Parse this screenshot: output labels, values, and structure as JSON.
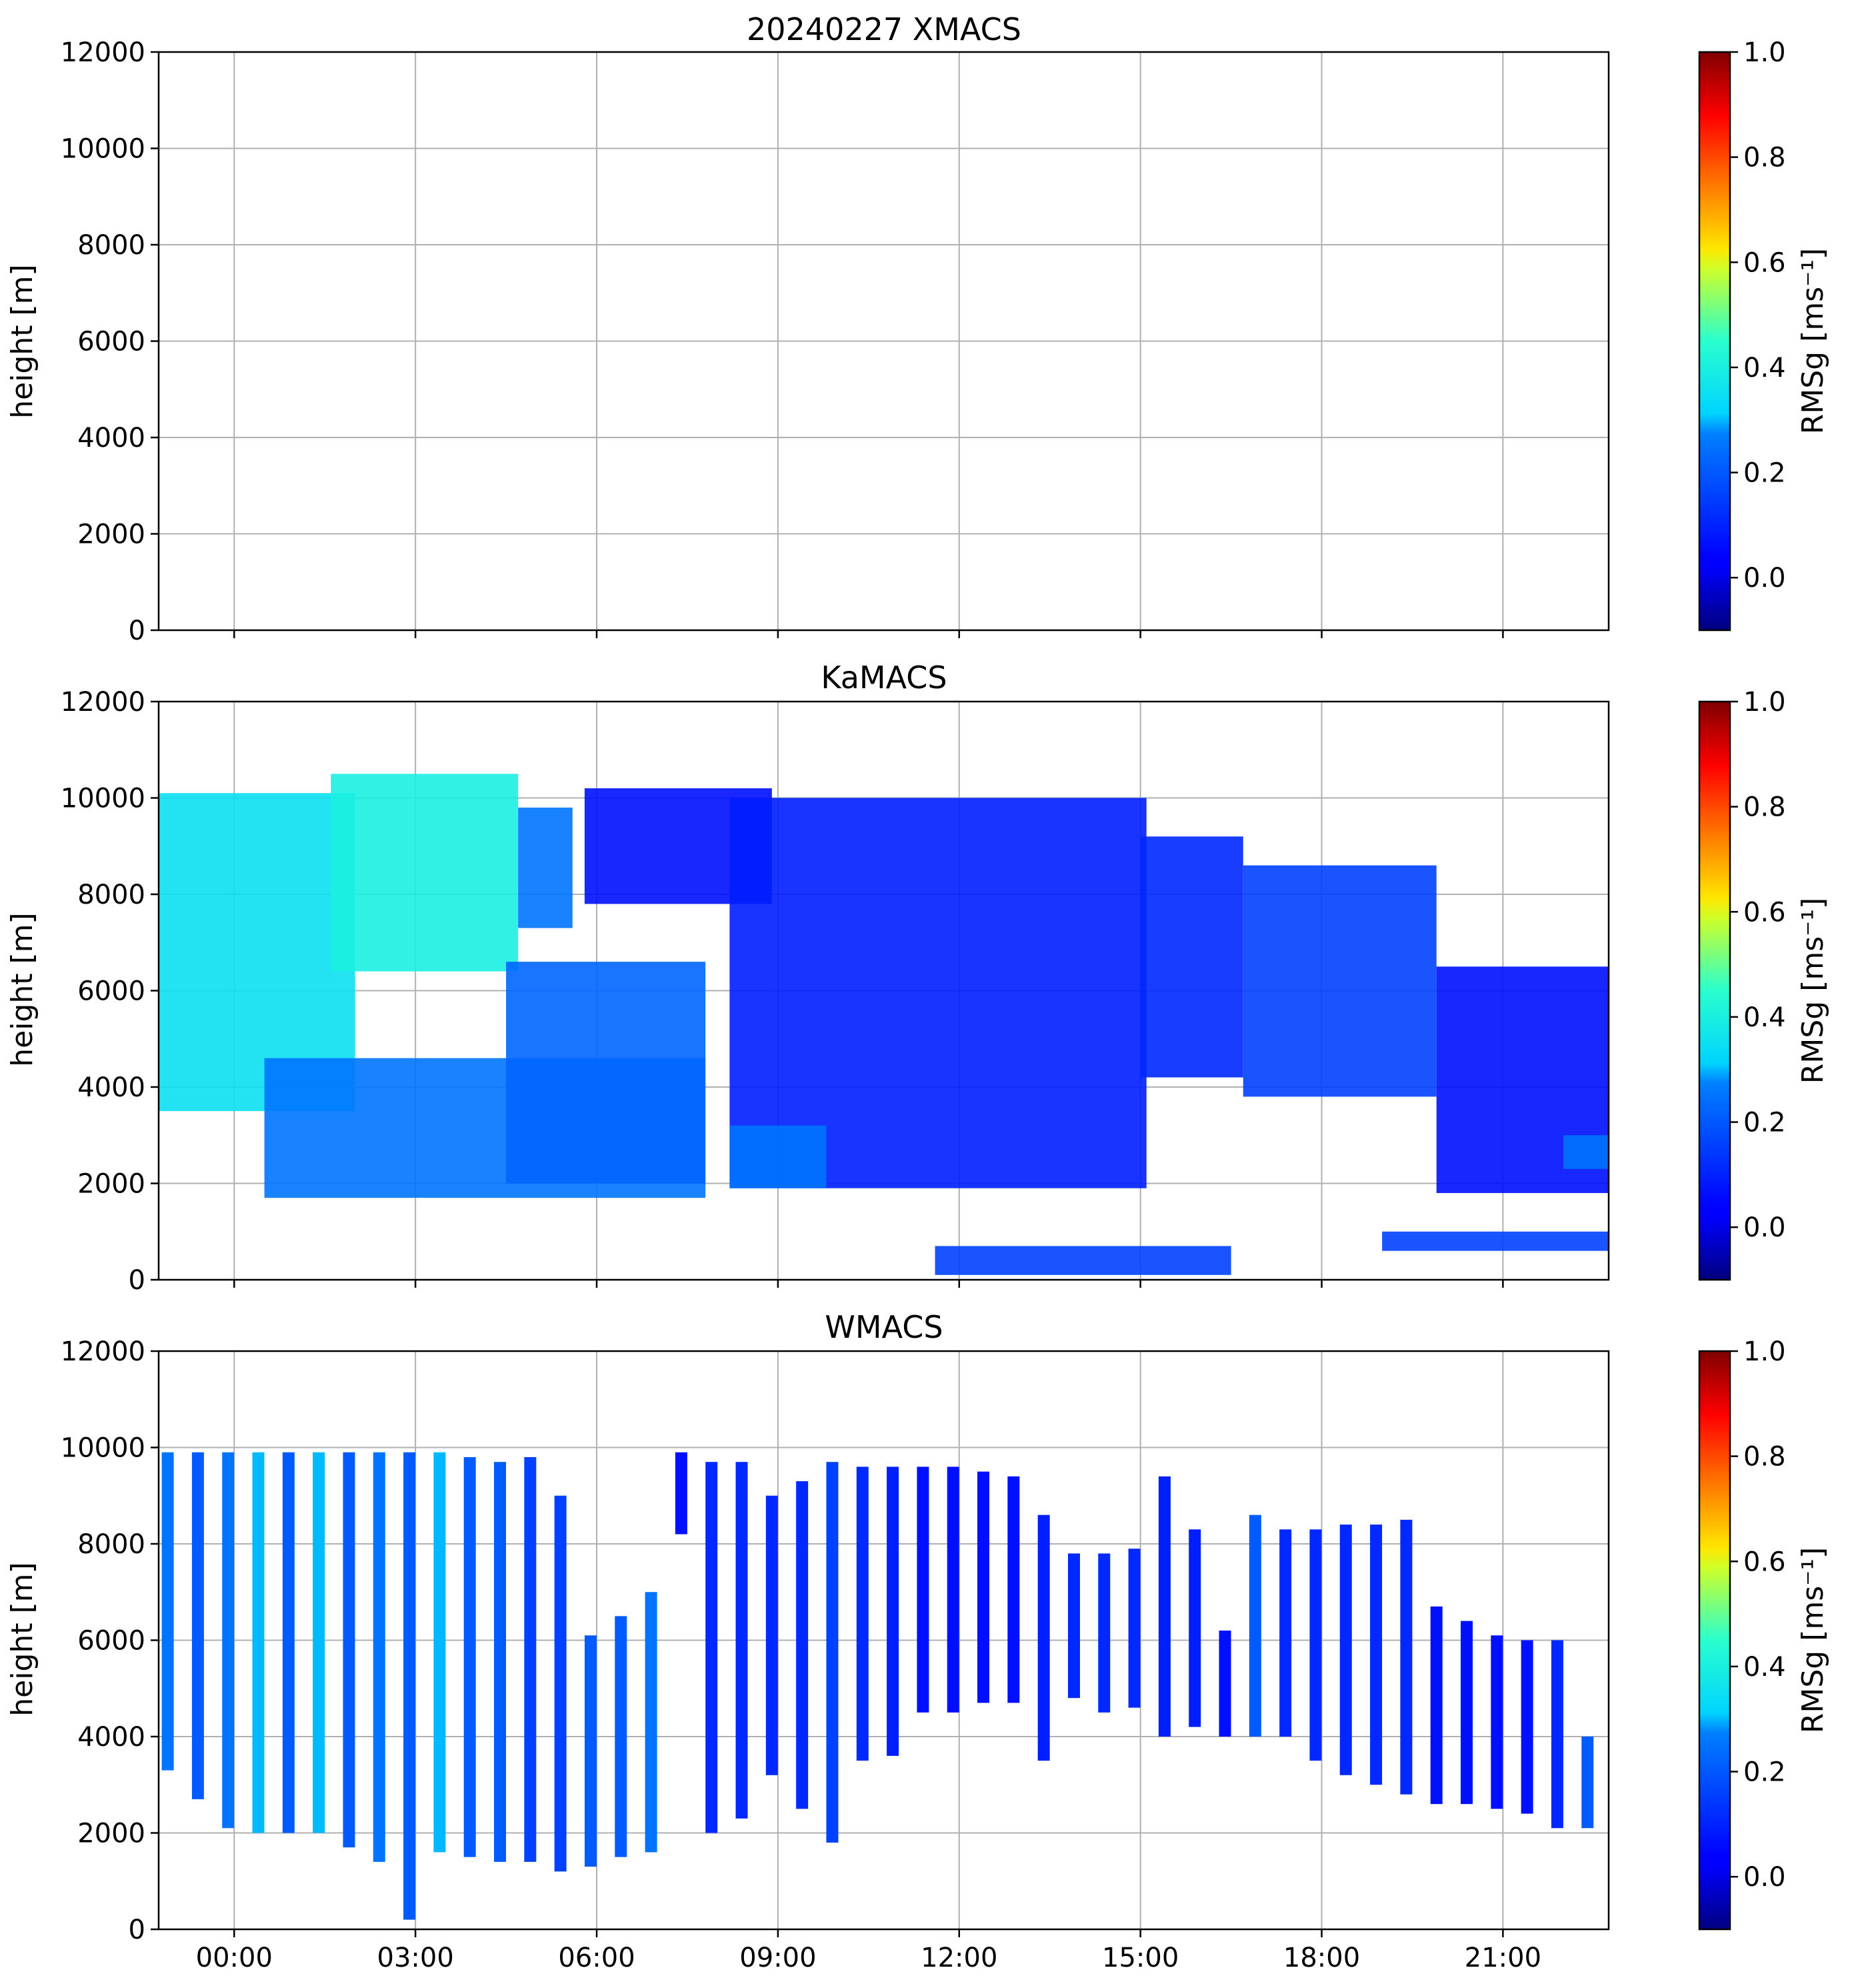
{
  "chart_data": [
    {
      "type": "heatmap",
      "title": "20240227 XMACS",
      "ylabel": "height [m]",
      "xlim_hours": [
        -1.25,
        22.75
      ],
      "ylim": [
        0,
        12000
      ],
      "yticks": [
        0,
        2000,
        4000,
        6000,
        8000,
        10000,
        12000
      ],
      "xticks": [
        "00:00",
        "03:00",
        "06:00",
        "09:00",
        "12:00",
        "15:00",
        "18:00",
        "21:00"
      ],
      "xtick_hours": [
        0,
        3,
        6,
        9,
        12,
        15,
        18,
        21
      ],
      "show_xtick_labels": false,
      "grid": true,
      "colorbar": {
        "label": "RMSg [ms⁻¹]",
        "range": [
          -0.1,
          1.0
        ],
        "ticks": [
          "0.0",
          "0.2",
          "0.4",
          "0.6",
          "0.8",
          "1.0"
        ],
        "colormap": "jet"
      },
      "echo_regions": []
    },
    {
      "type": "heatmap",
      "title": "KaMACS",
      "ylabel": "height [m]",
      "xlim_hours": [
        -1.25,
        22.75
      ],
      "ylim": [
        0,
        12000
      ],
      "yticks": [
        0,
        2000,
        4000,
        6000,
        8000,
        10000,
        12000
      ],
      "xticks": [
        "00:00",
        "03:00",
        "06:00",
        "09:00",
        "12:00",
        "15:00",
        "18:00",
        "21:00"
      ],
      "xtick_hours": [
        0,
        3,
        6,
        9,
        12,
        15,
        18,
        21
      ],
      "show_xtick_labels": false,
      "grid": true,
      "colorbar": {
        "label": "RMSg [ms⁻¹]",
        "range": [
          -0.1,
          1.0
        ],
        "ticks": [
          "0.0",
          "0.2",
          "0.4",
          "0.6",
          "0.8",
          "1.0"
        ],
        "colormap": "jet"
      },
      "echo_regions": [
        {
          "t0": -1.25,
          "t1": 2.0,
          "base": 3500,
          "top": 10100,
          "rmsg": 0.35
        },
        {
          "t0": 1.6,
          "t1": 4.7,
          "base": 6400,
          "top": 10500,
          "rmsg": 0.4
        },
        {
          "t0": 4.7,
          "t1": 5.6,
          "base": 7300,
          "top": 9800,
          "rmsg": 0.25
        },
        {
          "t0": 0.5,
          "t1": 7.8,
          "base": 1700,
          "top": 4600,
          "rmsg": 0.25
        },
        {
          "t0": 4.5,
          "t1": 7.8,
          "base": 2000,
          "top": 6600,
          "rmsg": 0.22
        },
        {
          "t0": 5.8,
          "t1": 8.9,
          "base": 7800,
          "top": 10200,
          "rmsg": 0.05
        },
        {
          "t0": 8.2,
          "t1": 15.1,
          "base": 1900,
          "top": 10000,
          "rmsg": 0.08
        },
        {
          "t0": 8.2,
          "t1": 9.8,
          "base": 1900,
          "top": 3200,
          "rmsg": 0.25
        },
        {
          "t0": 15.0,
          "t1": 16.7,
          "base": 4200,
          "top": 9200,
          "rmsg": 0.1
        },
        {
          "t0": 16.7,
          "t1": 19.9,
          "base": 3800,
          "top": 8600,
          "rmsg": 0.15
        },
        {
          "t0": 19.9,
          "t1": 22.75,
          "base": 1800,
          "top": 6500,
          "rmsg": 0.05
        },
        {
          "t0": 22.0,
          "t1": 22.75,
          "base": 2300,
          "top": 3000,
          "rmsg": 0.25
        },
        {
          "t0": 11.6,
          "t1": 16.5,
          "base": 100,
          "top": 700,
          "rmsg": 0.15
        },
        {
          "t0": 19.0,
          "t1": 22.75,
          "base": 600,
          "top": 1000,
          "rmsg": 0.15
        }
      ]
    },
    {
      "type": "heatmap",
      "title": "WMACS",
      "ylabel": "height [m]",
      "xlim_hours": [
        -1.25,
        22.75
      ],
      "ylim": [
        0,
        12000
      ],
      "yticks": [
        0,
        2000,
        4000,
        6000,
        8000,
        10000,
        12000
      ],
      "xticks": [
        "00:00",
        "03:00",
        "06:00",
        "09:00",
        "12:00",
        "15:00",
        "18:00",
        "21:00"
      ],
      "xtick_hours": [
        0,
        3,
        6,
        9,
        12,
        15,
        18,
        21
      ],
      "show_xtick_labels": true,
      "grid": true,
      "colorbar": {
        "label": "RMSg [ms⁻¹]",
        "range": [
          -0.1,
          1.0
        ],
        "ticks": [
          "0.0",
          "0.2",
          "0.4",
          "0.6",
          "0.8",
          "1.0"
        ],
        "colormap": "jet"
      },
      "echo_stripes": [
        {
          "t": -1.1,
          "base": 3300,
          "top": 9900,
          "rmsg": 0.25
        },
        {
          "t": -0.6,
          "base": 2700,
          "top": 9900,
          "rmsg": 0.2
        },
        {
          "t": -0.1,
          "base": 2100,
          "top": 9900,
          "rmsg": 0.25
        },
        {
          "t": 0.4,
          "base": 2000,
          "top": 9900,
          "rmsg": 0.3
        },
        {
          "t": 0.9,
          "base": 2000,
          "top": 9900,
          "rmsg": 0.2
        },
        {
          "t": 1.4,
          "base": 2000,
          "top": 9900,
          "rmsg": 0.3
        },
        {
          "t": 1.9,
          "base": 1700,
          "top": 9900,
          "rmsg": 0.2
        },
        {
          "t": 2.4,
          "base": 1400,
          "top": 9900,
          "rmsg": 0.25
        },
        {
          "t": 2.9,
          "base": 200,
          "top": 9900,
          "rmsg": 0.2
        },
        {
          "t": 3.4,
          "base": 1600,
          "top": 9900,
          "rmsg": 0.3
        },
        {
          "t": 3.9,
          "base": 1500,
          "top": 9800,
          "rmsg": 0.2
        },
        {
          "t": 4.4,
          "base": 1400,
          "top": 9700,
          "rmsg": 0.2
        },
        {
          "t": 4.9,
          "base": 1400,
          "top": 9800,
          "rmsg": 0.15
        },
        {
          "t": 5.4,
          "base": 1200,
          "top": 9000,
          "rmsg": 0.15
        },
        {
          "t": 5.9,
          "base": 1300,
          "top": 6100,
          "rmsg": 0.2
        },
        {
          "t": 6.4,
          "base": 1500,
          "top": 6500,
          "rmsg": 0.2
        },
        {
          "t": 6.9,
          "base": 1600,
          "top": 7000,
          "rmsg": 0.25
        },
        {
          "t": 7.4,
          "base": 8200,
          "top": 9900,
          "rmsg": 0.05
        },
        {
          "t": 7.9,
          "base": 2000,
          "top": 9700,
          "rmsg": 0.1
        },
        {
          "t": 8.4,
          "base": 2300,
          "top": 9700,
          "rmsg": 0.1
        },
        {
          "t": 8.9,
          "base": 3200,
          "top": 9000,
          "rmsg": 0.1
        },
        {
          "t": 9.4,
          "base": 2500,
          "top": 9300,
          "rmsg": 0.1
        },
        {
          "t": 9.9,
          "base": 1800,
          "top": 9700,
          "rmsg": 0.15
        },
        {
          "t": 10.4,
          "base": 3500,
          "top": 9600,
          "rmsg": 0.1
        },
        {
          "t": 10.9,
          "base": 3600,
          "top": 9600,
          "rmsg": 0.08
        },
        {
          "t": 11.4,
          "base": 4500,
          "top": 9600,
          "rmsg": 0.05
        },
        {
          "t": 11.9,
          "base": 4500,
          "top": 9600,
          "rmsg": 0.05
        },
        {
          "t": 12.4,
          "base": 4700,
          "top": 9500,
          "rmsg": 0.05
        },
        {
          "t": 12.9,
          "base": 4700,
          "top": 9400,
          "rmsg": 0.05
        },
        {
          "t": 13.4,
          "base": 3500,
          "top": 8600,
          "rmsg": 0.08
        },
        {
          "t": 13.9,
          "base": 4800,
          "top": 7800,
          "rmsg": 0.1
        },
        {
          "t": 14.4,
          "base": 4500,
          "top": 7800,
          "rmsg": 0.1
        },
        {
          "t": 14.9,
          "base": 4600,
          "top": 7900,
          "rmsg": 0.1
        },
        {
          "t": 15.4,
          "base": 4000,
          "top": 9400,
          "rmsg": 0.08
        },
        {
          "t": 15.9,
          "base": 4200,
          "top": 8300,
          "rmsg": 0.08
        },
        {
          "t": 16.4,
          "base": 4000,
          "top": 6200,
          "rmsg": 0.05
        },
        {
          "t": 16.9,
          "base": 4000,
          "top": 8600,
          "rmsg": 0.2
        },
        {
          "t": 17.4,
          "base": 4000,
          "top": 8300,
          "rmsg": 0.1
        },
        {
          "t": 17.9,
          "base": 3500,
          "top": 8300,
          "rmsg": 0.1
        },
        {
          "t": 18.4,
          "base": 3200,
          "top": 8400,
          "rmsg": 0.1
        },
        {
          "t": 18.9,
          "base": 3000,
          "top": 8400,
          "rmsg": 0.1
        },
        {
          "t": 19.4,
          "base": 2800,
          "top": 8500,
          "rmsg": 0.1
        },
        {
          "t": 19.9,
          "base": 2600,
          "top": 6700,
          "rmsg": 0.05
        },
        {
          "t": 20.4,
          "base": 2600,
          "top": 6400,
          "rmsg": 0.05
        },
        {
          "t": 20.9,
          "base": 2500,
          "top": 6100,
          "rmsg": 0.05
        },
        {
          "t": 21.4,
          "base": 2400,
          "top": 6000,
          "rmsg": 0.05
        },
        {
          "t": 21.9,
          "base": 2100,
          "top": 6000,
          "rmsg": 0.1
        },
        {
          "t": 22.4,
          "base": 2100,
          "top": 4000,
          "rmsg": 0.2
        }
      ]
    }
  ]
}
